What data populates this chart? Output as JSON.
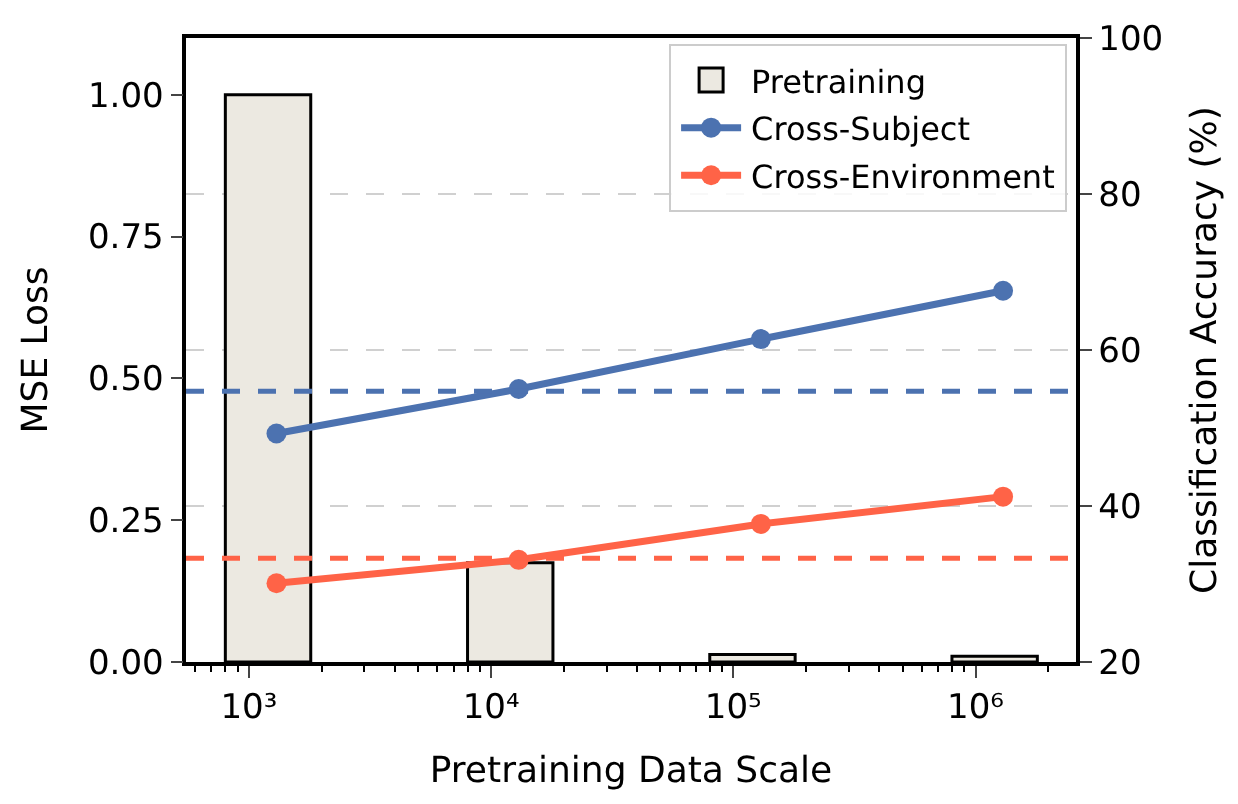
{
  "chart_data": {
    "type": "bar",
    "xlabel": "Pretraining Data Scale",
    "ylabel": "MSE Loss",
    "y2label": "Classification Accuracy (%)",
    "x": [
      1300,
      13000,
      130000,
      1300000
    ],
    "series": [
      {
        "name": "Pretraining",
        "color": "#ece9e1",
        "values": [
          1.0,
          0.175,
          0.013,
          0.01
        ]
      },
      {
        "name": "Cross-Subject",
        "type": "line",
        "axis": "y2",
        "color": "#4c72b0",
        "values": [
          49.3,
          55.0,
          61.4,
          67.6
        ]
      },
      {
        "name": "Cross-Environment",
        "type": "line",
        "axis": "y2",
        "color": "#ff6347",
        "values": [
          30.1,
          33.1,
          37.7,
          41.2
        ]
      }
    ],
    "log": "x",
    "xlim": [
      550,
      2600000
    ],
    "xticks": [
      {
        "value": 1000,
        "label": "10³"
      },
      {
        "value": 10000,
        "label": "10⁴"
      },
      {
        "value": 100000,
        "label": "10⁵"
      },
      {
        "value": 1000000,
        "label": "10⁶"
      }
    ],
    "ylim": [
      0,
      1.1
    ],
    "yticks": [
      {
        "value": 0,
        "label": "0.00"
      },
      {
        "value": 0.25,
        "label": "0.25"
      },
      {
        "value": 0.5,
        "label": "0.50"
      },
      {
        "value": 0.75,
        "label": "0.75"
      },
      {
        "value": 1.0,
        "label": "1.00"
      }
    ],
    "y2lim": [
      20,
      100
    ],
    "y2ticks": [
      20,
      40,
      60,
      80,
      100
    ],
    "ref_lines": [
      {
        "axis": "y2",
        "value": 54.7,
        "color": "#4c72b0",
        "line_style": "dashed"
      },
      {
        "axis": "y2",
        "value": 33.3,
        "color": "#ff6347",
        "line_style": "dashed"
      }
    ],
    "grid": "y2",
    "legend": "top right",
    "marker": "circle",
    "line_style": "solid"
  }
}
